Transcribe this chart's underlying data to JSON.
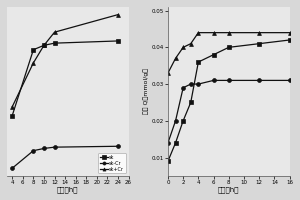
{
  "left_plot": {
    "x_sk": [
      4,
      8,
      10,
      12,
      24
    ],
    "y_sk": [
      2.0,
      3.5,
      3.6,
      3.65,
      3.7
    ],
    "x_sk_cr": [
      4,
      8,
      10,
      12,
      24
    ],
    "y_sk_cr": [
      0.8,
      1.2,
      1.25,
      1.28,
      1.3
    ],
    "x_sk_Cr": [
      4,
      8,
      10,
      12,
      24
    ],
    "y_sk_Cr": [
      2.2,
      3.2,
      3.6,
      3.9,
      4.3
    ],
    "xlabel": "时间（h）",
    "xlim": [
      3,
      26
    ],
    "xticks": [
      4,
      6,
      8,
      10,
      12,
      14,
      16,
      18,
      20,
      22,
      24,
      26
    ],
    "legend_labels": [
      "sk",
      "sk-Cr",
      "sk+Cr"
    ]
  },
  "right_plot": {
    "x_sk": [
      0,
      1,
      2,
      3,
      4,
      6,
      8,
      12,
      16
    ],
    "y_sk": [
      0.009,
      0.014,
      0.02,
      0.025,
      0.036,
      0.038,
      0.04,
      0.041,
      0.042
    ],
    "x_sk_cr": [
      0,
      1,
      2,
      3,
      4,
      6,
      8,
      12,
      16
    ],
    "y_sk_cr": [
      0.014,
      0.02,
      0.029,
      0.03,
      0.03,
      0.031,
      0.031,
      0.031,
      0.031
    ],
    "x_sk_Cr": [
      0,
      1,
      2,
      3,
      4,
      6,
      8,
      12,
      16
    ],
    "y_sk_Cr": [
      0.033,
      0.037,
      0.04,
      0.041,
      0.044,
      0.044,
      0.044,
      0.044,
      0.044
    ],
    "xlabel": "时间（h）",
    "ylabel": "吐量 Q（mmol/g）",
    "xlim": [
      0,
      16
    ],
    "ylim": [
      0.005,
      0.051
    ],
    "xticks": [
      0,
      2,
      4,
      6,
      8,
      10,
      12,
      14,
      16
    ],
    "yticks": [
      0.01,
      0.02,
      0.03,
      0.04,
      0.05
    ],
    "ytick_labels": [
      "0.01",
      "0.02",
      "0.03",
      "0.04",
      "0.05"
    ],
    "legend_labels": [
      "sk",
      "sk-Cr",
      "sk+Cr"
    ]
  },
  "bg_color": "#d8d8d8",
  "plot_bg": "#e8e8e8",
  "line_color": "#111111",
  "marker_square": "s",
  "marker_circle": "o",
  "marker_triangle": "^"
}
